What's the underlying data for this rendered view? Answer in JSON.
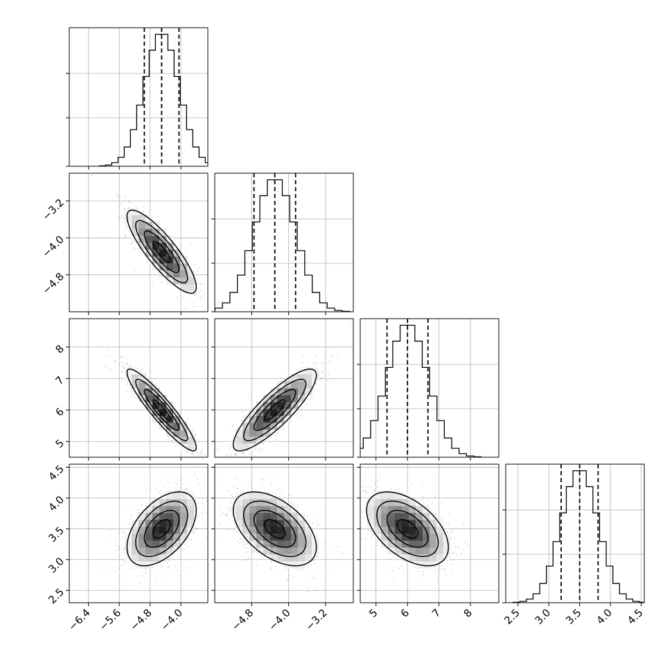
{
  "chart_data": {
    "type": "corner",
    "parameters": [
      {
        "mean": -4.5,
        "std": 0.45,
        "quantiles": [
          -4.95,
          -4.5,
          -4.05
        ],
        "range": [
          -6.9,
          -3.3
        ],
        "ticks": [
          -6.4,
          -5.6,
          -4.8,
          -4.0
        ],
        "tick_labels": [
          "−6.4",
          "−5.6",
          "−4.8",
          "−4.0"
        ]
      },
      {
        "mean": -4.3,
        "std": 0.45,
        "quantiles": [
          -4.75,
          -4.3,
          -3.85
        ],
        "range": [
          -5.6,
          -2.6
        ],
        "ticks": [
          -4.8,
          -4.0,
          -3.2
        ],
        "tick_labels": [
          "−4.8",
          "−4.0",
          "−3.2"
        ]
      },
      {
        "mean": 6.0,
        "std": 0.65,
        "quantiles": [
          5.35,
          6.0,
          6.65
        ],
        "range": [
          4.5,
          8.9
        ],
        "ticks": [
          5,
          6,
          7,
          8
        ],
        "tick_labels": [
          "5",
          "6",
          "7",
          "8"
        ]
      },
      {
        "mean": 3.5,
        "std": 0.3,
        "quantiles": [
          3.2,
          3.5,
          3.8
        ],
        "range": [
          2.3,
          4.55
        ],
        "ticks": [
          2.5,
          3.0,
          3.5,
          4.0,
          4.5
        ],
        "tick_labels": [
          "2.5",
          "3.0",
          "3.5",
          "4.0",
          "4.5"
        ]
      }
    ],
    "correlations": [
      [
        1.0,
        -0.85,
        -0.92,
        0.5
      ],
      [
        -0.85,
        1.0,
        0.85,
        -0.5
      ],
      [
        -0.92,
        0.85,
        1.0,
        -0.5
      ],
      [
        0.5,
        -0.5,
        -0.5,
        1.0
      ]
    ],
    "contour_levels_sigma": [
      0.5,
      1.0,
      1.5,
      2.0
    ],
    "histogram_bins": 20,
    "grid": true,
    "colors": {
      "points": "#9a9a9a",
      "lines": "#000000",
      "density": "#000000"
    }
  }
}
